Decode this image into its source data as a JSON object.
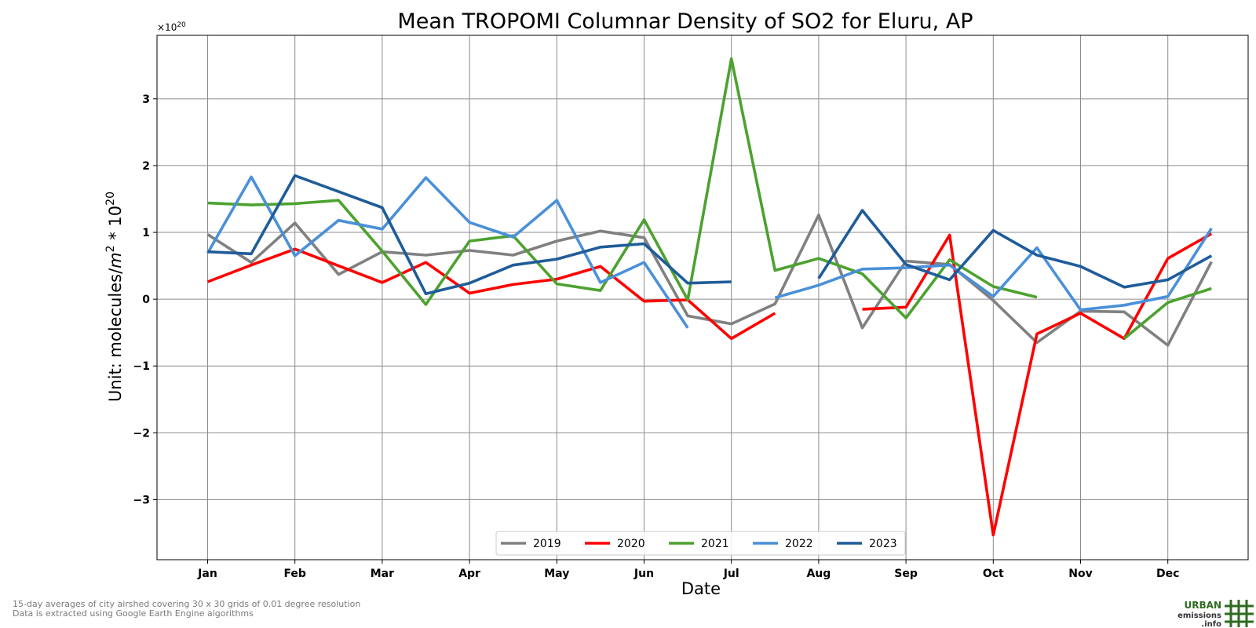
{
  "chart_data": {
    "type": "line",
    "title": "Mean TROPOMI Columnar Density of SO2 for Eluru, AP",
    "xlabel": "Date",
    "ylabel_prefix": "Unit: molecules/",
    "ylabel_m": "m",
    "ylabel_m_exp": "2",
    "ylabel_mid": " * 10",
    "ylabel_exp": "20",
    "offset_base": "×10",
    "offset_exp": "20",
    "ylim": [
      -3.9,
      3.95
    ],
    "xlim": [
      0.42,
      12.92
    ],
    "yticks": [
      {
        "value": -3,
        "label": "−3"
      },
      {
        "value": -2,
        "label": "−2"
      },
      {
        "value": -1,
        "label": "−1"
      },
      {
        "value": 0,
        "label": "0"
      },
      {
        "value": 1,
        "label": "1"
      },
      {
        "value": 2,
        "label": "2"
      },
      {
        "value": 3,
        "label": "3"
      }
    ],
    "xticks": [
      {
        "value": 1,
        "label": "Jan"
      },
      {
        "value": 2,
        "label": "Feb"
      },
      {
        "value": 3,
        "label": "Mar"
      },
      {
        "value": 4,
        "label": "Apr"
      },
      {
        "value": 5,
        "label": "May"
      },
      {
        "value": 6,
        "label": "Jun"
      },
      {
        "value": 7,
        "label": "Jul"
      },
      {
        "value": 8,
        "label": "Aug"
      },
      {
        "value": 9,
        "label": "Sep"
      },
      {
        "value": 10,
        "label": "Oct"
      },
      {
        "value": 11,
        "label": "Nov"
      },
      {
        "value": 12,
        "label": "Dec"
      }
    ],
    "grid": true,
    "legend_position": "bottom-center",
    "x": [
      1,
      1.5,
      2,
      2.5,
      3,
      3.5,
      4,
      4.5,
      5,
      5.5,
      6,
      6.5,
      7,
      7.5,
      8,
      8.5,
      9,
      9.5,
      10,
      10.5,
      11,
      11.5,
      12,
      12.5
    ],
    "series": [
      {
        "name": "2019",
        "color": "#808080",
        "values": [
          0.97,
          0.55,
          1.14,
          0.37,
          0.71,
          0.66,
          0.73,
          0.66,
          0.87,
          1.02,
          0.92,
          -0.25,
          -0.37,
          -0.07,
          1.26,
          -0.43,
          0.57,
          0.52,
          -0.02,
          -0.65,
          -0.18,
          -0.19,
          -0.69,
          0.56
        ]
      },
      {
        "name": "2020",
        "color": "#ff0000",
        "values": [
          0.26,
          0.51,
          0.75,
          0.5,
          0.25,
          0.55,
          0.09,
          0.22,
          0.3,
          0.49,
          -0.03,
          -0.01,
          -0.59,
          -0.21,
          null,
          -0.15,
          -0.12,
          0.96,
          -3.53,
          -0.52,
          -0.21,
          -0.59,
          0.61,
          0.98
        ]
      },
      {
        "name": "2021",
        "color": "#4ca22f",
        "values": [
          1.44,
          1.41,
          1.43,
          1.48,
          0.72,
          -0.08,
          0.87,
          0.95,
          0.23,
          0.13,
          1.19,
          -0.01,
          3.6,
          0.43,
          0.61,
          0.38,
          -0.28,
          0.59,
          0.19,
          0.03,
          null,
          -0.59,
          -0.05,
          0.16
        ]
      },
      {
        "name": "2022",
        "color": "#4a90d9",
        "values": [
          0.69,
          1.83,
          0.65,
          1.18,
          1.05,
          1.82,
          1.15,
          0.93,
          1.48,
          0.25,
          0.55,
          -0.43,
          null,
          0.02,
          0.21,
          0.45,
          0.47,
          0.51,
          0.04,
          0.77,
          -0.16,
          -0.09,
          0.04,
          1.06
        ]
      },
      {
        "name": "2023",
        "color": "#1f5c99",
        "values": [
          0.71,
          0.68,
          1.85,
          1.61,
          1.37,
          0.08,
          0.24,
          0.51,
          0.6,
          0.78,
          0.83,
          0.24,
          0.26,
          null,
          0.31,
          1.33,
          0.52,
          0.29,
          1.03,
          0.66,
          0.49,
          0.18,
          0.29,
          0.65
        ]
      }
    ]
  },
  "footnote": {
    "line1": "15-day averages of city airshed covering 30 x 30 grids of 0.01 degree resolution",
    "line2": "Data is extracted using Google Earth Engine algorithms"
  },
  "logo": {
    "line1": "URBAN",
    "line2": "emissions",
    "line3": ".info"
  },
  "colors": {
    "grid": "#8c8c8c",
    "logo_green": "#2e6b1f"
  }
}
